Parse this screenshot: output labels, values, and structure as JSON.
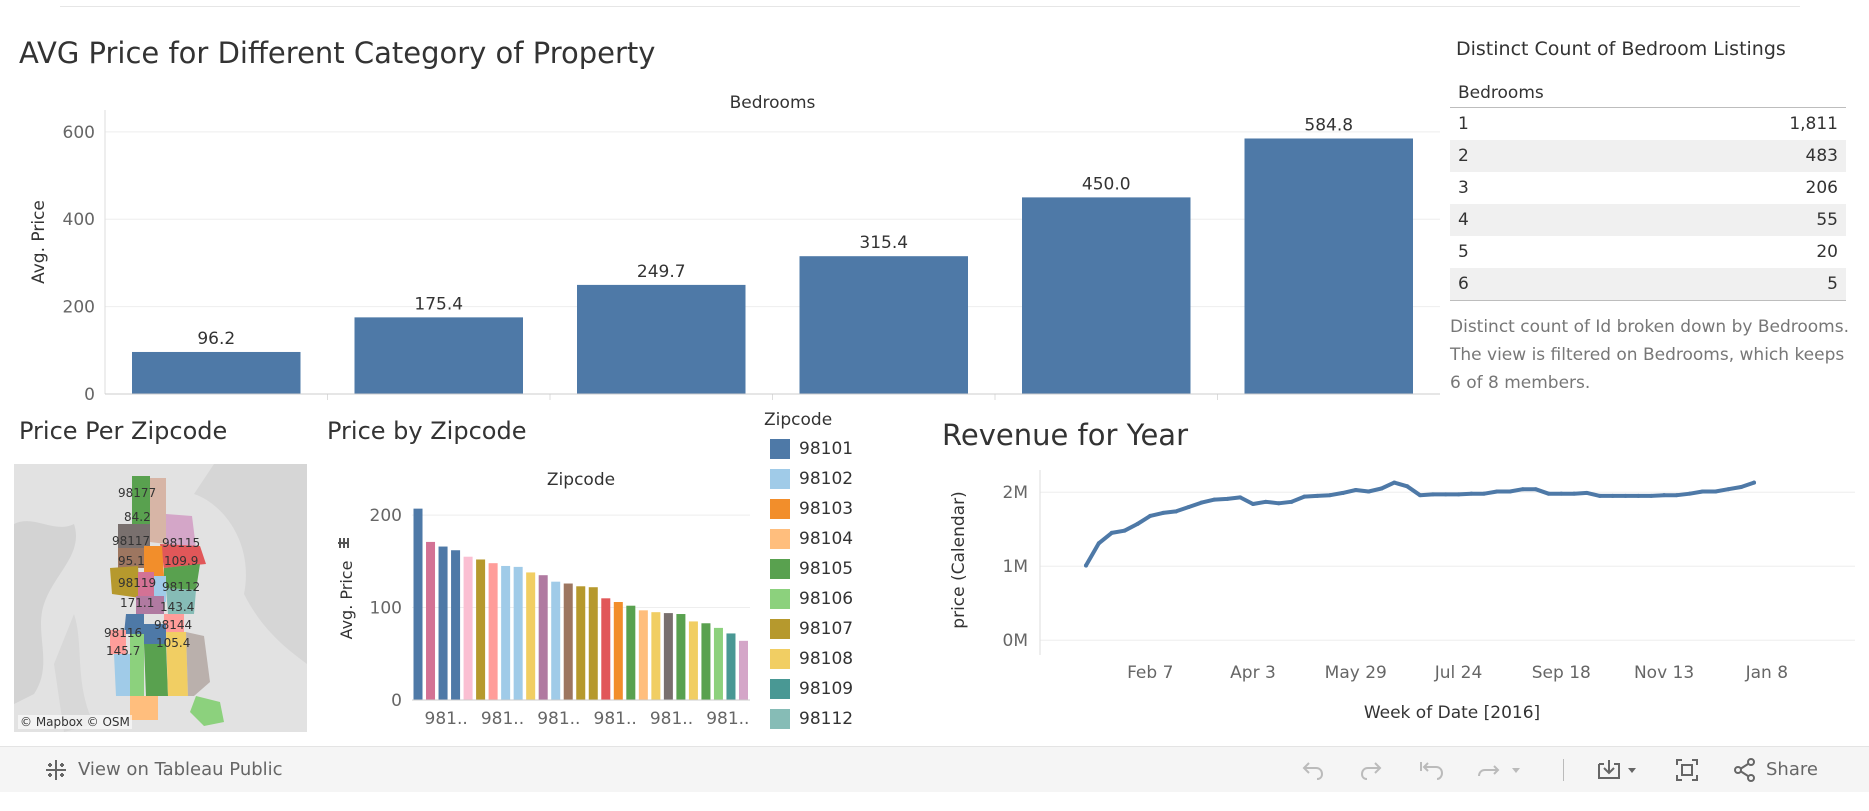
{
  "bedrooms_chart": {
    "title": "AVG Price for Different Category of Property",
    "chart_data": {
      "type": "bar",
      "title": "AVG Price for Different Category of Property",
      "header": "Bedrooms",
      "ylabel": "Avg. Price",
      "categories": [
        "1",
        "2",
        "3",
        "4",
        "5",
        "6"
      ],
      "values": [
        96.2,
        175.4,
        249.7,
        315.4,
        450.0,
        584.8
      ],
      "value_labels": [
        "96.2",
        "175.4",
        "249.7",
        "315.4",
        "450.0",
        "584.8"
      ],
      "yticks": [
        "0",
        "200",
        "400",
        "600"
      ],
      "ytick_values": [
        0,
        200,
        400,
        600
      ],
      "ylim": [
        0,
        650
      ],
      "color": "#4e79a7"
    }
  },
  "bedroom_table": {
    "title": "Distinct Count of Bedroom Listings",
    "column_header": "Bedrooms",
    "rows": [
      {
        "bedrooms": "1",
        "count": "1,811"
      },
      {
        "bedrooms": "2",
        "count": "483"
      },
      {
        "bedrooms": "3",
        "count": "206"
      },
      {
        "bedrooms": "4",
        "count": "55"
      },
      {
        "bedrooms": "5",
        "count": "20"
      },
      {
        "bedrooms": "6",
        "count": "5"
      }
    ],
    "caption": "Distinct count of Id broken down by Bedrooms. The view is filtered on Bedrooms, which keeps 6 of 8 members."
  },
  "zip_map": {
    "title": "Price Per Zipcode",
    "labels": [
      "98177",
      "84.2",
      "98117",
      "98115",
      "95.1",
      "109.9",
      "98119",
      "98112",
      "171.1",
      "143.4",
      "98144",
      "98116",
      "105.4",
      "145.7"
    ],
    "credit": "© Mapbox  © OSM"
  },
  "zip_chart": {
    "title": "Price by Zipcode",
    "chart_data": {
      "type": "bar",
      "title": "Price by Zipcode",
      "header": "Zipcode",
      "ylabel": "Avg. Price",
      "x_tick_labels": [
        "981..",
        "981..",
        "981..",
        "981..",
        "981..",
        "981.."
      ],
      "values": [
        207,
        171,
        166,
        162,
        155,
        152,
        148,
        145,
        144,
        138,
        135,
        128,
        126,
        123,
        122,
        110,
        106,
        102,
        97,
        95,
        94,
        93,
        85,
        83,
        78,
        72,
        64
      ],
      "colors": [
        "#4e79a7",
        "#d37295",
        "#4e79a7",
        "#4e79a7",
        "#fabfd2",
        "#b6992d",
        "#ff9d9a",
        "#a0cbe8",
        "#a0cbe8",
        "#f1ce63",
        "#b07aa1",
        "#a0cbe8",
        "#9d7660",
        "#b6992d",
        "#b6992d",
        "#e15759",
        "#f28e2b",
        "#59a14f",
        "#ffbe7d",
        "#f1ce63",
        "#79706e",
        "#59a14f",
        "#f1ce63",
        "#59a14f",
        "#8cd17d",
        "#499894",
        "#d4a6c8"
      ],
      "yticks": [
        "0",
        "100",
        "200"
      ],
      "ytick_values": [
        0,
        100,
        200
      ],
      "ylim": [
        0,
        225
      ]
    }
  },
  "zip_legend": {
    "title": "Zipcode",
    "items": [
      {
        "label": "98101",
        "color": "#4e79a7"
      },
      {
        "label": "98102",
        "color": "#a0cbe8"
      },
      {
        "label": "98103",
        "color": "#f28e2b"
      },
      {
        "label": "98104",
        "color": "#ffbe7d"
      },
      {
        "label": "98105",
        "color": "#59a14f"
      },
      {
        "label": "98106",
        "color": "#8cd17d"
      },
      {
        "label": "98107",
        "color": "#b6992d"
      },
      {
        "label": "98108",
        "color": "#f1ce63"
      },
      {
        "label": "98109",
        "color": "#499894"
      },
      {
        "label": "98112",
        "color": "#86bcb6"
      }
    ]
  },
  "revenue_chart": {
    "title": "Revenue for Year",
    "chart_data": {
      "type": "line",
      "title": "Revenue for Year",
      "xlabel": "Week of Date [2016]",
      "ylabel": "price (Calendar)",
      "x_tick_labels": [
        "Feb 7",
        "Apr 3",
        "May 29",
        "Jul 24",
        "Sep 18",
        "Nov 13",
        "Jan 8"
      ],
      "x_tick_weeks": [
        5,
        13,
        21,
        29,
        37,
        45,
        53
      ],
      "yticks": [
        "0M",
        "1M",
        "2M"
      ],
      "ytick_values": [
        0,
        1000000,
        2000000
      ],
      "ylim": [
        -200000,
        2300000
      ],
      "x_weeks": [
        0,
        1,
        2,
        3,
        4,
        5,
        6,
        7,
        8,
        9,
        10,
        11,
        12,
        13,
        14,
        15,
        16,
        17,
        18,
        19,
        20,
        21,
        22,
        23,
        24,
        25,
        26,
        27,
        28,
        29,
        30,
        31,
        32,
        33,
        34,
        35,
        36,
        37,
        38,
        39,
        40,
        41,
        42,
        43,
        44,
        45,
        46,
        47,
        48,
        49,
        50,
        51,
        52
      ],
      "values": [
        1010000,
        1310000,
        1450000,
        1480000,
        1570000,
        1680000,
        1720000,
        1740000,
        1800000,
        1860000,
        1900000,
        1910000,
        1930000,
        1840000,
        1870000,
        1850000,
        1870000,
        1940000,
        1950000,
        1960000,
        1990000,
        2030000,
        2010000,
        2050000,
        2130000,
        2080000,
        1960000,
        1970000,
        1970000,
        1970000,
        1980000,
        1980000,
        2010000,
        2010000,
        2040000,
        2040000,
        1980000,
        1980000,
        1980000,
        1990000,
        1950000,
        1950000,
        1950000,
        1950000,
        1950000,
        1960000,
        1960000,
        1980000,
        2010000,
        2010000,
        2040000,
        2070000,
        2130000
      ],
      "color": "#4e79a7"
    }
  },
  "toolbar": {
    "view_label": "View on Tableau Public",
    "share_label": "Share"
  }
}
